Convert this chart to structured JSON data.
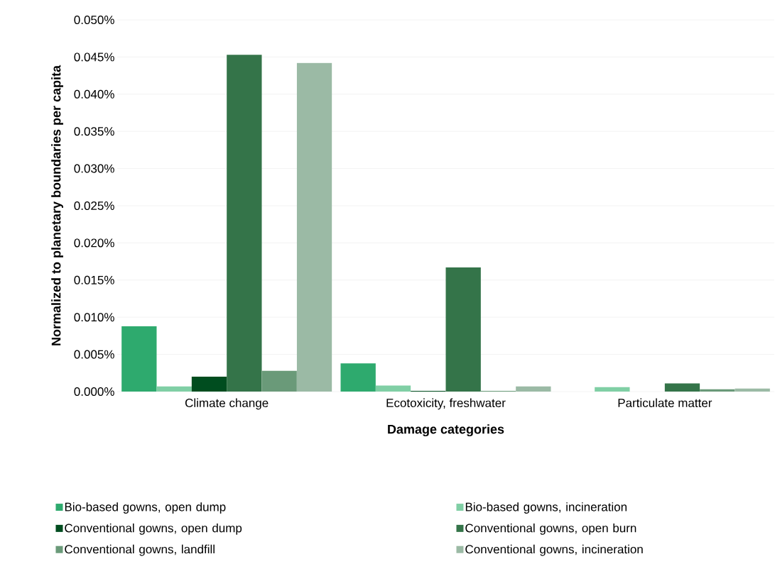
{
  "chart_data": {
    "type": "bar",
    "xlabel": "Damage categories",
    "ylabel": "Normalized to planetary boundaries per capita",
    "categories": [
      "Climate change",
      "Ecotoxicity, freshwater",
      "Particulate matter"
    ],
    "series": [
      {
        "name": "Bio-based gowns, open dump",
        "color": "#2eaa6e",
        "values": [
          0.0088,
          0.0038,
          0
        ]
      },
      {
        "name": "Bio-based gowns, incineration",
        "color": "#80cfa5",
        "values": [
          0.0007,
          0.0008,
          0.0006
        ]
      },
      {
        "name": "Conventional gowns, open dump",
        "color": "#004d1f",
        "values": [
          0.002,
          0.0001,
          0
        ]
      },
      {
        "name": "Conventional gowns, open burn",
        "color": "#347449",
        "values": [
          0.0453,
          0.0167,
          0.0011
        ]
      },
      {
        "name": "Conventional gowns, landfill",
        "color": "#6a9a79",
        "values": [
          0.0028,
          0.0001,
          0.0003
        ]
      },
      {
        "name": "Conventional gowns, incineration",
        "color": "#9bbaa5",
        "values": [
          0.0442,
          0.0007,
          0.0004
        ]
      }
    ],
    "ylim": [
      0,
      0.05
    ],
    "yticks": [
      {
        "value": 0,
        "label": "0.000%"
      },
      {
        "value": 0.005,
        "label": "0.005%"
      },
      {
        "value": 0.01,
        "label": "0.010%"
      },
      {
        "value": 0.015,
        "label": "0.015%"
      },
      {
        "value": 0.02,
        "label": "0.020%"
      },
      {
        "value": 0.025,
        "label": "0.025%"
      },
      {
        "value": 0.03,
        "label": "0.030%"
      },
      {
        "value": 0.035,
        "label": "0.035%"
      },
      {
        "value": 0.04,
        "label": "0.040%"
      },
      {
        "value": 0.045,
        "label": "0.045%"
      },
      {
        "value": 0.05,
        "label": "0.050%"
      }
    ],
    "grid": "y",
    "legend": "bottom"
  }
}
